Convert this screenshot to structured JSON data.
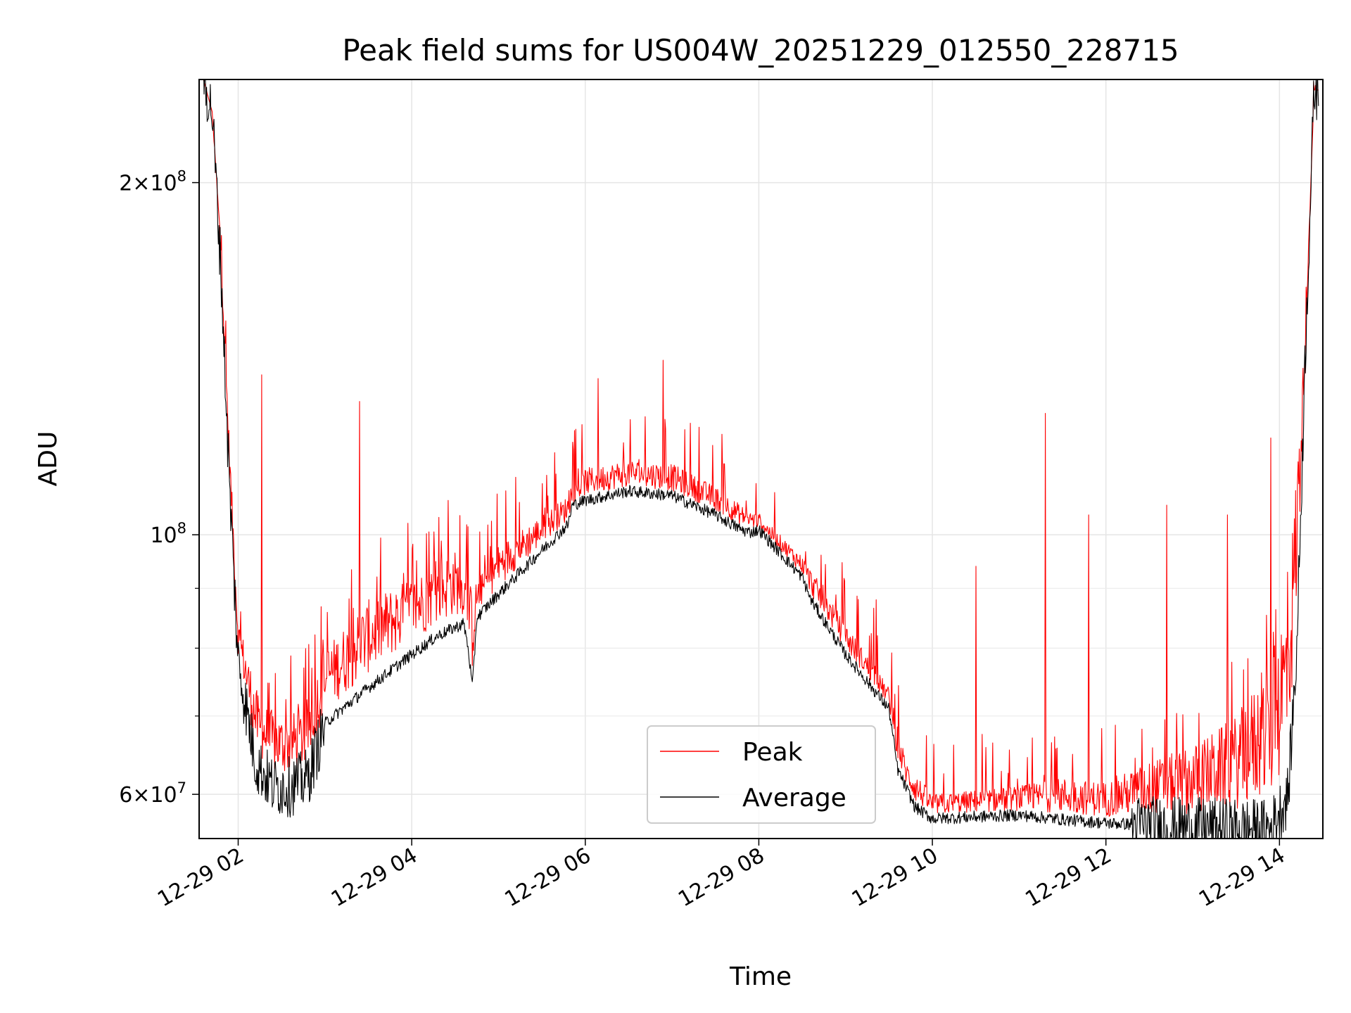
{
  "chart_data": {
    "type": "line",
    "title": "Peak field sums for US004W_20251229_012550_228715",
    "xlabel": "Time",
    "ylabel": "ADU",
    "yscale": "log",
    "xlim_hours": [
      1.55,
      14.5
    ],
    "ylim": [
      55000000,
      245000000
    ],
    "grid": true,
    "x_ticks": [
      {
        "hour": 2,
        "label": "12-29 02"
      },
      {
        "hour": 4,
        "label": "12-29 04"
      },
      {
        "hour": 6,
        "label": "12-29 06"
      },
      {
        "hour": 8,
        "label": "12-29 08"
      },
      {
        "hour": 10,
        "label": "12-29 10"
      },
      {
        "hour": 12,
        "label": "12-29 12"
      },
      {
        "hour": 14,
        "label": "12-29 14"
      }
    ],
    "y_major_ticks": [
      {
        "value": 60000000,
        "mantissa": "6",
        "base": "10",
        "exp": "7"
      },
      {
        "value": 100000000,
        "mantissa": "",
        "base": "10",
        "exp": "8"
      },
      {
        "value": 200000000,
        "mantissa": "2",
        "base": "10",
        "exp": "8"
      }
    ],
    "y_minor_ticks": [
      70000000,
      80000000,
      90000000
    ],
    "legend": {
      "position": "lower-center"
    },
    "series": [
      {
        "name": "Peak",
        "color": "#ff0000",
        "x": [
          1.6,
          1.7,
          1.8,
          1.9,
          2.0,
          2.25,
          2.5,
          2.75,
          3.0,
          3.5,
          4.0,
          4.5,
          4.7,
          5.0,
          5.5,
          5.8,
          6.0,
          6.5,
          7.0,
          7.5,
          7.8,
          8.0,
          8.5,
          9.0,
          9.5,
          9.7,
          10.0,
          10.5,
          11.0,
          11.5,
          12.0,
          12.5,
          13.0,
          13.5,
          13.9,
          14.1,
          14.3,
          14.4
        ],
        "values": [
          245000000,
          230000000,
          180000000,
          120000000,
          85000000,
          72000000,
          70000000,
          71000000,
          80000000,
          88000000,
          92000000,
          97000000,
          90000000,
          98000000,
          104000000,
          108000000,
          114000000,
          116000000,
          115000000,
          110000000,
          106000000,
          104000000,
          96000000,
          84000000,
          74000000,
          64000000,
          60000000,
          60500000,
          61000000,
          62000000,
          61500000,
          64000000,
          66000000,
          70000000,
          78000000,
          90000000,
          150000000,
          240000000
        ],
        "spikes": [
          {
            "x": 2.27,
            "value": 137000000
          },
          {
            "x": 3.4,
            "value": 130000000
          },
          {
            "x": 4.42,
            "value": 107000000
          },
          {
            "x": 5.2,
            "value": 112000000
          },
          {
            "x": 6.15,
            "value": 136000000
          },
          {
            "x": 6.9,
            "value": 141000000
          },
          {
            "x": 7.6,
            "value": 115000000
          },
          {
            "x": 9.35,
            "value": 88000000
          },
          {
            "x": 10.5,
            "value": 94000000
          },
          {
            "x": 11.3,
            "value": 127000000
          },
          {
            "x": 11.8,
            "value": 104000000
          },
          {
            "x": 12.7,
            "value": 106000000
          },
          {
            "x": 13.4,
            "value": 104000000
          },
          {
            "x": 13.9,
            "value": 121000000
          }
        ]
      },
      {
        "name": "Average",
        "color": "#000000",
        "x": [
          1.6,
          1.7,
          1.8,
          1.9,
          2.0,
          2.2,
          2.4,
          2.6,
          2.8,
          3.0,
          3.5,
          4.0,
          4.3,
          4.6,
          4.65,
          4.7,
          4.75,
          5.0,
          5.5,
          5.8,
          5.85,
          6.0,
          6.5,
          7.0,
          7.5,
          7.8,
          7.9,
          8.0,
          8.5,
          8.6,
          9.0,
          9.5,
          9.6,
          9.8,
          10.0,
          10.5,
          11.0,
          11.5,
          12.0,
          12.5,
          13.0,
          13.5,
          13.9,
          14.1,
          14.2,
          14.3,
          14.4
        ],
        "values": [
          245000000,
          230000000,
          170000000,
          110000000,
          78000000,
          64000000,
          61000000,
          61000000,
          62000000,
          69000000,
          74000000,
          79000000,
          82000000,
          84000000,
          80000000,
          74000000,
          85000000,
          89000000,
          97000000,
          102000000,
          106000000,
          107000000,
          109000000,
          108000000,
          104000000,
          101000000,
          100500000,
          101000000,
          92000000,
          88000000,
          79000000,
          71000000,
          63000000,
          58500000,
          57200000,
          57400000,
          57600000,
          57100000,
          56700000,
          56500000,
          56300000,
          56200000,
          56100000,
          60000000,
          80000000,
          145000000,
          240000000
        ]
      }
    ]
  }
}
